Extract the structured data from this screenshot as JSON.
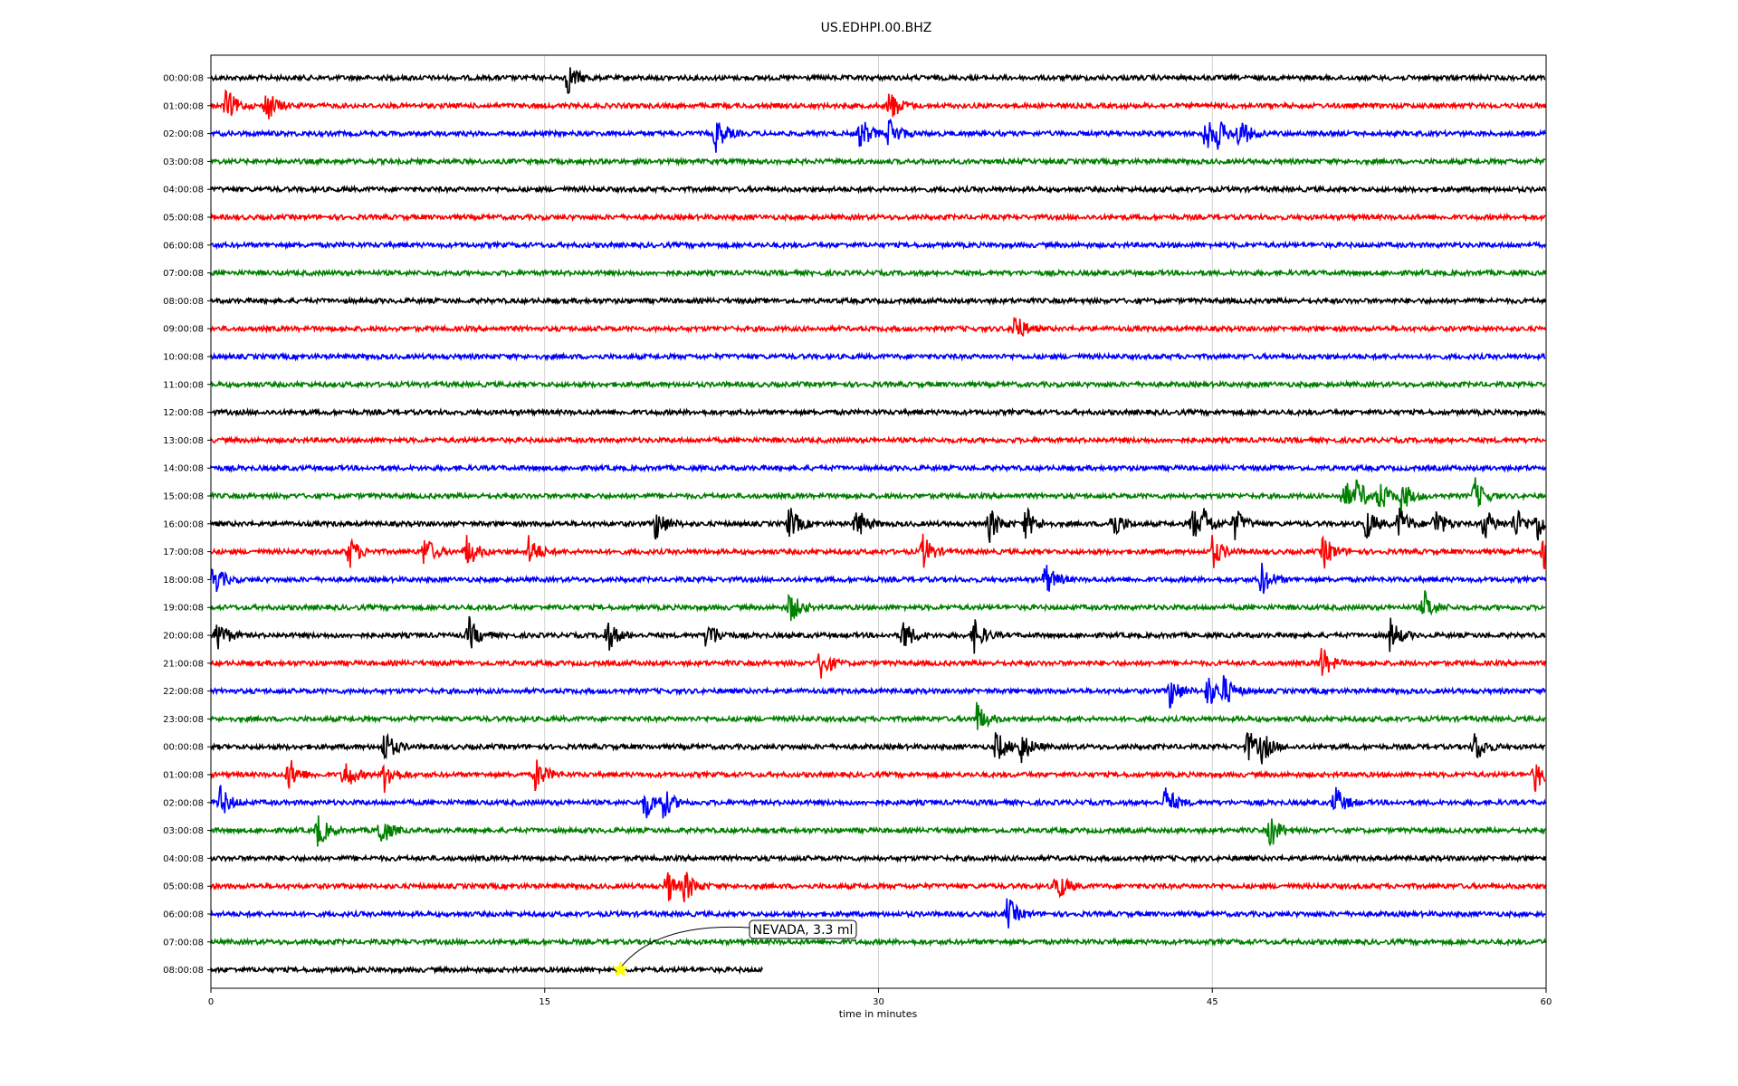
{
  "chart_data": {
    "type": "line",
    "title": "US.EDHPI.00.BHZ",
    "xlabel": "time in minutes",
    "ylabel": "",
    "xlim": [
      0,
      60
    ],
    "x_ticks": [
      0,
      15,
      30,
      45,
      60
    ],
    "grid": "vertical",
    "colors": [
      "#000000",
      "#ff0000",
      "#0000ff",
      "#008000"
    ],
    "row_labels": [
      "00:00:08",
      "01:00:08",
      "02:00:08",
      "03:00:08",
      "04:00:08",
      "05:00:08",
      "06:00:08",
      "07:00:08",
      "08:00:08",
      "09:00:08",
      "10:00:08",
      "11:00:08",
      "12:00:08",
      "13:00:08",
      "14:00:08",
      "15:00:08",
      "16:00:08",
      "17:00:08",
      "18:00:08",
      "19:00:08",
      "20:00:08",
      "21:00:08",
      "22:00:08",
      "23:00:08",
      "00:00:08",
      "01:00:08",
      "02:00:08",
      "03:00:08",
      "04:00:08",
      "05:00:08",
      "06:00:08",
      "07:00:08",
      "08:00:08"
    ],
    "last_row_end_minutes": 24.8,
    "events": [
      {
        "row": 0,
        "minutes": [
          16
        ]
      },
      {
        "row": 1,
        "minutes": [
          0.7,
          2.5,
          30.5
        ]
      },
      {
        "row": 2,
        "minutes": [
          22.7,
          29.2,
          30.5,
          44.7,
          45.2,
          46.2
        ]
      },
      {
        "row": 9,
        "minutes": [
          36.1
        ]
      },
      {
        "row": 15,
        "minutes": [
          50.9,
          51.5,
          52.5,
          53.5,
          56.8
        ]
      },
      {
        "row": 16,
        "minutes": [
          20,
          26,
          29,
          35,
          36.6,
          40.5,
          44.1,
          44.6,
          46.0,
          51.9,
          53.4,
          55.0,
          57.2,
          58.6,
          59.6
        ]
      },
      {
        "row": 17,
        "minutes": [
          6.2,
          9.6,
          11.5,
          14.3,
          32.0,
          45.0,
          50.0,
          59.9
        ]
      },
      {
        "row": 18,
        "minutes": [
          0.1,
          37.5,
          47.2
        ]
      },
      {
        "row": 19,
        "minutes": [
          26.0,
          54.5
        ]
      },
      {
        "row": 20,
        "minutes": [
          0.3,
          11.6,
          17.8,
          22.3,
          31.1,
          34.3,
          53.0
        ]
      },
      {
        "row": 21,
        "minutes": [
          27.4,
          49.9
        ]
      },
      {
        "row": 22,
        "minutes": [
          43.1,
          44.8,
          45.5
        ]
      },
      {
        "row": 23,
        "minutes": [
          34.4
        ]
      },
      {
        "row": 24,
        "minutes": [
          7.8,
          35.3,
          36.4,
          46.6,
          47.2,
          56.8
        ]
      },
      {
        "row": 25,
        "minutes": [
          3.5,
          6.0,
          7.8,
          14.6,
          59.5
        ]
      },
      {
        "row": 26,
        "minutes": [
          0.4,
          19.5,
          20.3,
          42.9,
          50.5
        ]
      },
      {
        "row": 27,
        "minutes": [
          4.8,
          7.6,
          47.6
        ]
      },
      {
        "row": 29,
        "minutes": [
          20.5,
          21.3,
          38.0
        ]
      },
      {
        "row": 30,
        "minutes": [
          35.8
        ]
      }
    ],
    "annotation": {
      "text": "NEVADA, 3.3 ml",
      "row": 32,
      "minutes": 18.4
    }
  }
}
